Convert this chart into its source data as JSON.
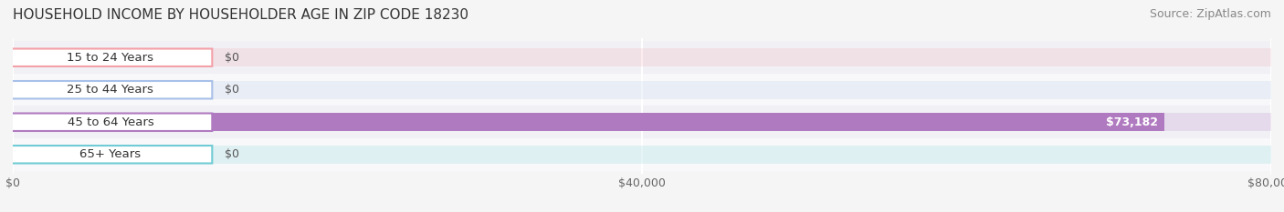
{
  "title": "HOUSEHOLD INCOME BY HOUSEHOLDER AGE IN ZIP CODE 18230",
  "source": "Source: ZipAtlas.com",
  "categories": [
    "15 to 24 Years",
    "25 to 44 Years",
    "45 to 64 Years",
    "65+ Years"
  ],
  "values": [
    0,
    0,
    73182,
    0
  ],
  "bar_colors": [
    "#f4a0a8",
    "#a8c0e8",
    "#b07ac0",
    "#70ccd4"
  ],
  "label_colors": [
    "#f4a0a8",
    "#a8c0e8",
    "#b07ac0",
    "#70ccd4"
  ],
  "value_labels": [
    "$0",
    "$0",
    "$73,182",
    "$0"
  ],
  "xlim": [
    0,
    80000
  ],
  "xticks": [
    0,
    40000,
    80000
  ],
  "xticklabels": [
    "$0",
    "$40,000",
    "$80,000"
  ],
  "background_color": "#f5f5f5",
  "bar_bg_color": "#ebebeb",
  "title_fontsize": 11,
  "source_fontsize": 9,
  "label_fontsize": 9.5,
  "value_fontsize": 9,
  "tick_fontsize": 9
}
